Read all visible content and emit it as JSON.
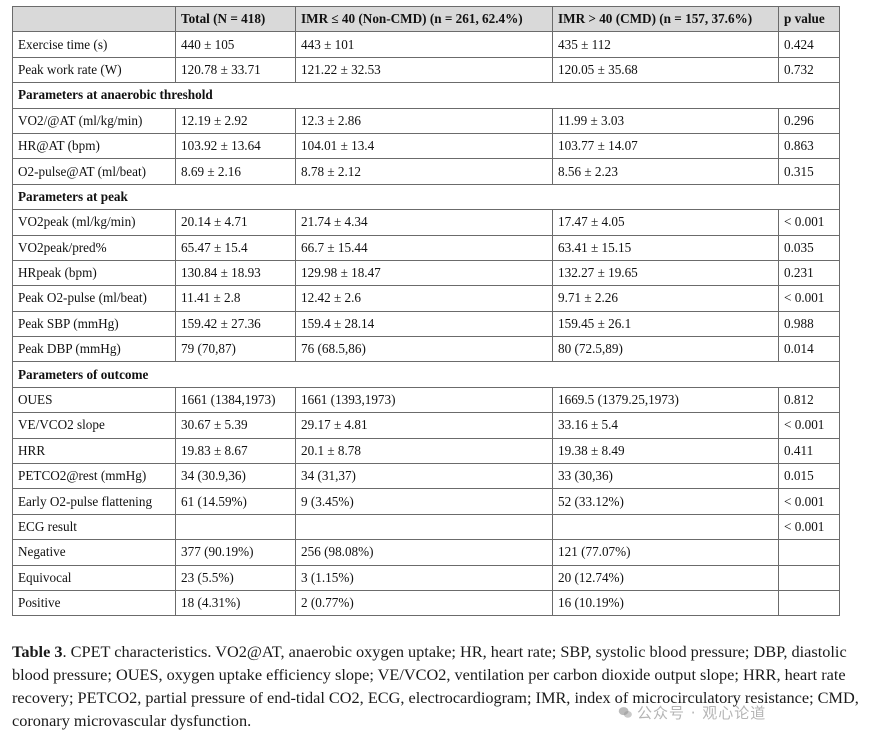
{
  "table": {
    "headers": [
      "",
      "Total (N = 418)",
      "IMR ≤ 40 (Non-CMD) (n = 261, 62.4%)",
      "IMR > 40 (CMD) (n = 157, 37.6%)",
      "p value"
    ],
    "rows": [
      {
        "type": "data",
        "cells": [
          "Exercise time (s)",
          "440 ± 105",
          "443 ± 101",
          "435 ± 112",
          "0.424"
        ]
      },
      {
        "type": "data",
        "cells": [
          "Peak work rate (W)",
          "120.78 ± 33.71",
          "121.22 ± 32.53",
          "120.05 ± 35.68",
          "0.732"
        ]
      },
      {
        "type": "section",
        "label": "Parameters at anaerobic threshold"
      },
      {
        "type": "data",
        "cells": [
          "VO2/@AT (ml/kg/min)",
          "12.19 ± 2.92",
          "12.3 ± 2.86",
          "11.99 ± 3.03",
          "0.296"
        ]
      },
      {
        "type": "data",
        "cells": [
          "HR@AT (bpm)",
          "103.92 ± 13.64",
          "104.01 ± 13.4",
          "103.77 ± 14.07",
          "0.863"
        ]
      },
      {
        "type": "data",
        "cells": [
          "O2-pulse@AT (ml/beat)",
          "8.69 ± 2.16",
          "8.78 ± 2.12",
          "8.56 ± 2.23",
          "0.315"
        ]
      },
      {
        "type": "section",
        "label": "Parameters at peak"
      },
      {
        "type": "data",
        "cells": [
          "VO2peak (ml/kg/min)",
          "20.14 ± 4.71",
          "21.74 ± 4.34",
          "17.47 ± 4.05",
          "< 0.001"
        ]
      },
      {
        "type": "data",
        "cells": [
          "VO2peak/pred%",
          "65.47 ± 15.4",
          "66.7 ± 15.44",
          "63.41 ± 15.15",
          "0.035"
        ]
      },
      {
        "type": "data",
        "cells": [
          "HRpeak (bpm)",
          "130.84 ± 18.93",
          "129.98 ± 18.47",
          "132.27 ± 19.65",
          "0.231"
        ]
      },
      {
        "type": "data",
        "cells": [
          "Peak O2-pulse (ml/beat)",
          "11.41 ± 2.8",
          "12.42 ± 2.6",
          "9.71 ± 2.26",
          "< 0.001"
        ]
      },
      {
        "type": "data",
        "cells": [
          "Peak SBP (mmHg)",
          "159.42 ± 27.36",
          "159.4 ± 28.14",
          "159.45 ± 26.1",
          "0.988"
        ]
      },
      {
        "type": "data",
        "cells": [
          "Peak DBP (mmHg)",
          "79 (70,87)",
          "76 (68.5,86)",
          "80 (72.5,89)",
          "0.014"
        ]
      },
      {
        "type": "section",
        "label": "Parameters of outcome"
      },
      {
        "type": "data",
        "cells": [
          "OUES",
          "1661 (1384,1973)",
          "1661 (1393,1973)",
          "1669.5 (1379.25,1973)",
          "0.812"
        ]
      },
      {
        "type": "data",
        "cells": [
          "VE/VCO2 slope",
          "30.67 ± 5.39",
          "29.17 ± 4.81",
          "33.16 ± 5.4",
          "< 0.001"
        ]
      },
      {
        "type": "data",
        "cells": [
          "HRR",
          "19.83 ± 8.67",
          "20.1 ± 8.78",
          "19.38 ± 8.49",
          "0.411"
        ]
      },
      {
        "type": "data",
        "cells": [
          "PETCO2@rest (mmHg)",
          "34 (30.9,36)",
          "34 (31,37)",
          "33 (30,36)",
          "0.015"
        ]
      },
      {
        "type": "data",
        "cells": [
          "Early O2-pulse flattening",
          "61 (14.59%)",
          "9 (3.45%)",
          "52 (33.12%)",
          "< 0.001"
        ]
      },
      {
        "type": "data",
        "cells": [
          "ECG result",
          "",
          "",
          "",
          "< 0.001"
        ]
      },
      {
        "type": "data",
        "cells": [
          "Negative",
          "377 (90.19%)",
          "256 (98.08%)",
          "121 (77.07%)",
          ""
        ]
      },
      {
        "type": "data",
        "cells": [
          "Equivocal",
          "23 (5.5%)",
          "3 (1.15%)",
          "20 (12.74%)",
          ""
        ]
      },
      {
        "type": "data",
        "cells": [
          "Positive",
          "18 (4.31%)",
          "2 (0.77%)",
          "16 (10.19%)",
          ""
        ]
      }
    ]
  },
  "caption": {
    "label": "Table 3",
    "text": ". CPET characteristics. VO2@AT, anaerobic oxygen uptake; HR, heart rate; SBP, systolic blood pressure; DBP, diastolic blood pressure; OUES, oxygen uptake efficiency slope; VE/VCO2, ventilation per carbon dioxide output slope; HRR, heart rate recovery; PETCO2, partial pressure of end-tidal CO2, ECG, electrocardiogram; IMR, index of microcirculatory resistance; CMD, coronary microvascular dysfunction."
  },
  "watermark": {
    "text": "公众号 · 观心论道",
    "icon": "wechat-icon"
  }
}
